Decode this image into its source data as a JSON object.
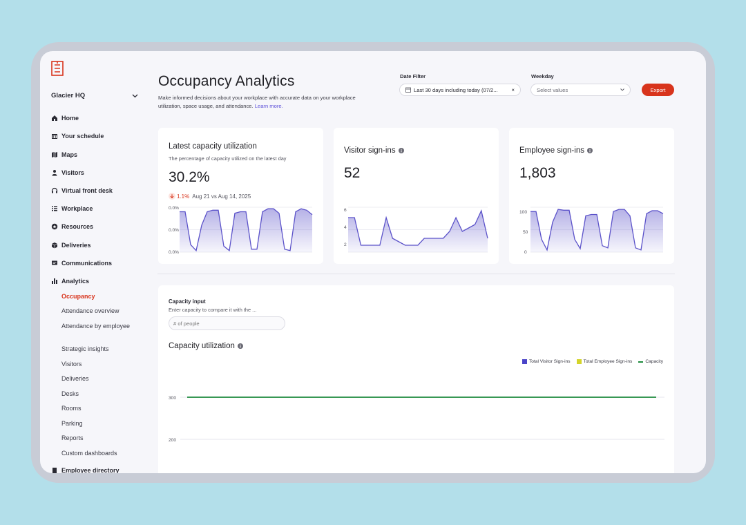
{
  "org": {
    "name": "Glacier HQ"
  },
  "nav": {
    "items": [
      {
        "label": "Home",
        "icon": "home-icon"
      },
      {
        "label": "Your schedule",
        "icon": "calendar-icon"
      },
      {
        "label": "Maps",
        "icon": "map-icon"
      },
      {
        "label": "Visitors",
        "icon": "person-icon"
      },
      {
        "label": "Virtual front desk",
        "icon": "headset-icon"
      },
      {
        "label": "Workplace",
        "icon": "list-icon"
      },
      {
        "label": "Resources",
        "icon": "star-icon"
      },
      {
        "label": "Deliveries",
        "icon": "box-icon"
      },
      {
        "label": "Communications",
        "icon": "message-icon"
      },
      {
        "label": "Analytics",
        "icon": "bar-chart-icon"
      }
    ],
    "analytics_sub": [
      "Occupancy",
      "Attendance overview",
      "Attendance by employee",
      "Strategic insights",
      "Visitors",
      "Deliveries",
      "Desks",
      "Rooms",
      "Parking",
      "Reports",
      "Custom dashboards"
    ],
    "bottom_item": {
      "label": "Employee directory",
      "icon": "book-icon"
    }
  },
  "header": {
    "title": "Occupancy Analytics",
    "subtitle": "Make informed decisions about your workplace with accurate data on your workplace utilization, space usage, and attendance.",
    "learn_more": "Learn more.",
    "date_filter_label": "Date Filter",
    "date_filter_value": "Last 30 days including today (07/2...",
    "weekday_label": "Weekday",
    "weekday_placeholder": "Select values",
    "export_label": "Export"
  },
  "cards": {
    "capacity": {
      "title": "Latest capacity utilization",
      "desc": "The percentage of capacity utilized on the latest day",
      "value": "30.2%",
      "change": "1.1%",
      "comparison": "Aug 21 vs Aug 14, 2025",
      "y_ticks": [
        "0.0%",
        "0.0%",
        "0.0%"
      ]
    },
    "visitors": {
      "title": "Visitor sign-ins",
      "value": "52",
      "y_ticks": [
        "6",
        "4",
        "2"
      ]
    },
    "employees": {
      "title": "Employee sign-ins",
      "value": "1,803",
      "y_ticks": [
        "100",
        "50",
        "0"
      ]
    }
  },
  "capacity_section": {
    "input_label": "Capacity input",
    "input_help": "Enter capacity to compare it with the ...",
    "input_placeholder": "# of people",
    "chart_title": "Capacity utilization",
    "legend": [
      {
        "label": "Total Visitor Sign-ins",
        "color": "#4a44c8"
      },
      {
        "label": "Total Employee Sign-ins",
        "color": "#d4d42a"
      },
      {
        "label": "Capacity",
        "color": "#1c8a3c"
      }
    ]
  },
  "colors": {
    "accent": "#d8341c",
    "series": "#5b52c9",
    "capacity_line": "#1c8a3c"
  },
  "chart_data": [
    {
      "type": "area",
      "title": "Latest capacity utilization",
      "y": [
        27,
        27,
        5,
        1,
        18,
        27,
        28,
        28,
        4,
        1,
        26,
        27,
        27,
        2,
        2,
        27,
        29,
        29,
        26,
        2,
        1,
        27,
        29,
        28,
        25
      ],
      "ylim": [
        0,
        30
      ],
      "y_tick_labels": [
        "0.0%",
        "0.0%",
        "0.0%"
      ]
    },
    {
      "type": "area",
      "title": "Visitor sign-ins",
      "y": [
        5,
        5,
        1,
        1,
        1,
        1,
        5,
        2,
        1.5,
        1,
        1,
        1,
        2,
        2,
        2,
        2,
        3,
        5,
        3,
        3.5,
        4,
        6,
        2
      ],
      "ylim": [
        0,
        6.5
      ],
      "y_tick_labels": [
        "6",
        "4",
        "2"
      ]
    },
    {
      "type": "area",
      "title": "Employee sign-ins",
      "y": [
        95,
        95,
        30,
        5,
        70,
        100,
        98,
        98,
        30,
        8,
        85,
        88,
        88,
        15,
        10,
        95,
        100,
        100,
        85,
        10,
        5,
        90,
        97,
        97,
        90
      ],
      "ylim": [
        0,
        105
      ],
      "y_tick_labels": [
        "100",
        "50",
        "0"
      ]
    },
    {
      "type": "line",
      "title": "Capacity utilization",
      "series": [
        {
          "name": "Capacity",
          "values": [
            300,
            300
          ]
        }
      ],
      "y_ticks": [
        300,
        200
      ],
      "ylim": [
        0,
        320
      ]
    }
  ]
}
